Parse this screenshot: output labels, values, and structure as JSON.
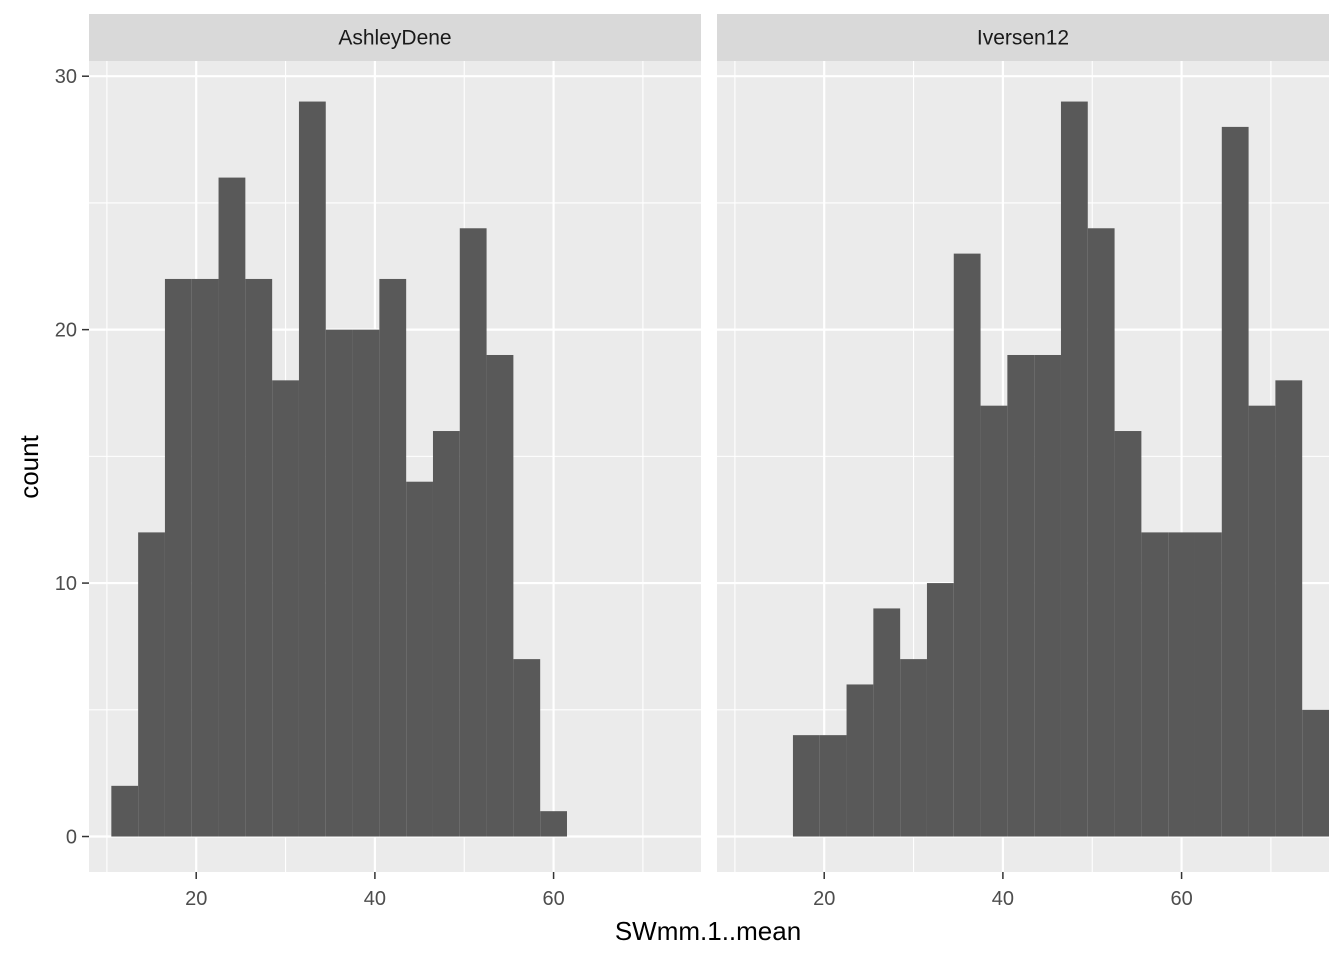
{
  "chart_data": {
    "type": "bar",
    "subtype": "histogram",
    "facets": "horizontal",
    "xlabel": "SWmm.1..mean",
    "ylabel": "count",
    "xlim": [
      8,
      76.5
    ],
    "ylim": [
      -1.4,
      30.6
    ],
    "x_ticks": [
      20,
      40,
      60
    ],
    "x_ticks_minor": [
      10,
      30,
      50,
      70
    ],
    "y_ticks": [
      0,
      10,
      20,
      30
    ],
    "y_ticks_minor": [
      5,
      15,
      25
    ],
    "bar_color": "#595959",
    "panel_color": "#EBEBEB",
    "strip_color": "#D9D9D9",
    "panels": [
      {
        "name": "AshleyDene",
        "bin_width": 3.0,
        "bins": [
          {
            "x0": 10.5,
            "count": 2
          },
          {
            "x0": 13.5,
            "count": 12
          },
          {
            "x0": 16.5,
            "count": 22
          },
          {
            "x0": 19.5,
            "count": 22
          },
          {
            "x0": 22.5,
            "count": 26
          },
          {
            "x0": 25.5,
            "count": 22
          },
          {
            "x0": 28.5,
            "count": 18
          },
          {
            "x0": 31.5,
            "count": 29
          },
          {
            "x0": 34.5,
            "count": 20
          },
          {
            "x0": 37.5,
            "count": 20
          },
          {
            "x0": 40.5,
            "count": 22
          },
          {
            "x0": 43.5,
            "count": 14
          },
          {
            "x0": 46.5,
            "count": 16
          },
          {
            "x0": 49.5,
            "count": 24
          },
          {
            "x0": 52.5,
            "count": 19
          },
          {
            "x0": 55.5,
            "count": 7
          },
          {
            "x0": 58.5,
            "count": 1
          }
        ]
      },
      {
        "name": "Iversen12",
        "bin_width": 3.0,
        "bins": [
          {
            "x0": 16.5,
            "count": 4
          },
          {
            "x0": 19.5,
            "count": 4
          },
          {
            "x0": 22.5,
            "count": 6
          },
          {
            "x0": 25.5,
            "count": 9
          },
          {
            "x0": 28.5,
            "count": 7
          },
          {
            "x0": 31.5,
            "count": 10
          },
          {
            "x0": 34.5,
            "count": 23
          },
          {
            "x0": 37.5,
            "count": 17
          },
          {
            "x0": 40.5,
            "count": 19
          },
          {
            "x0": 43.5,
            "count": 19
          },
          {
            "x0": 46.5,
            "count": 29
          },
          {
            "x0": 49.5,
            "count": 24
          },
          {
            "x0": 52.5,
            "count": 16
          },
          {
            "x0": 55.5,
            "count": 12
          },
          {
            "x0": 58.5,
            "count": 12
          },
          {
            "x0": 61.5,
            "count": 12
          },
          {
            "x0": 64.5,
            "count": 28
          },
          {
            "x0": 67.5,
            "count": 17
          },
          {
            "x0": 70.5,
            "count": 18
          },
          {
            "x0": 73.5,
            "count": 5
          }
        ]
      }
    ]
  }
}
